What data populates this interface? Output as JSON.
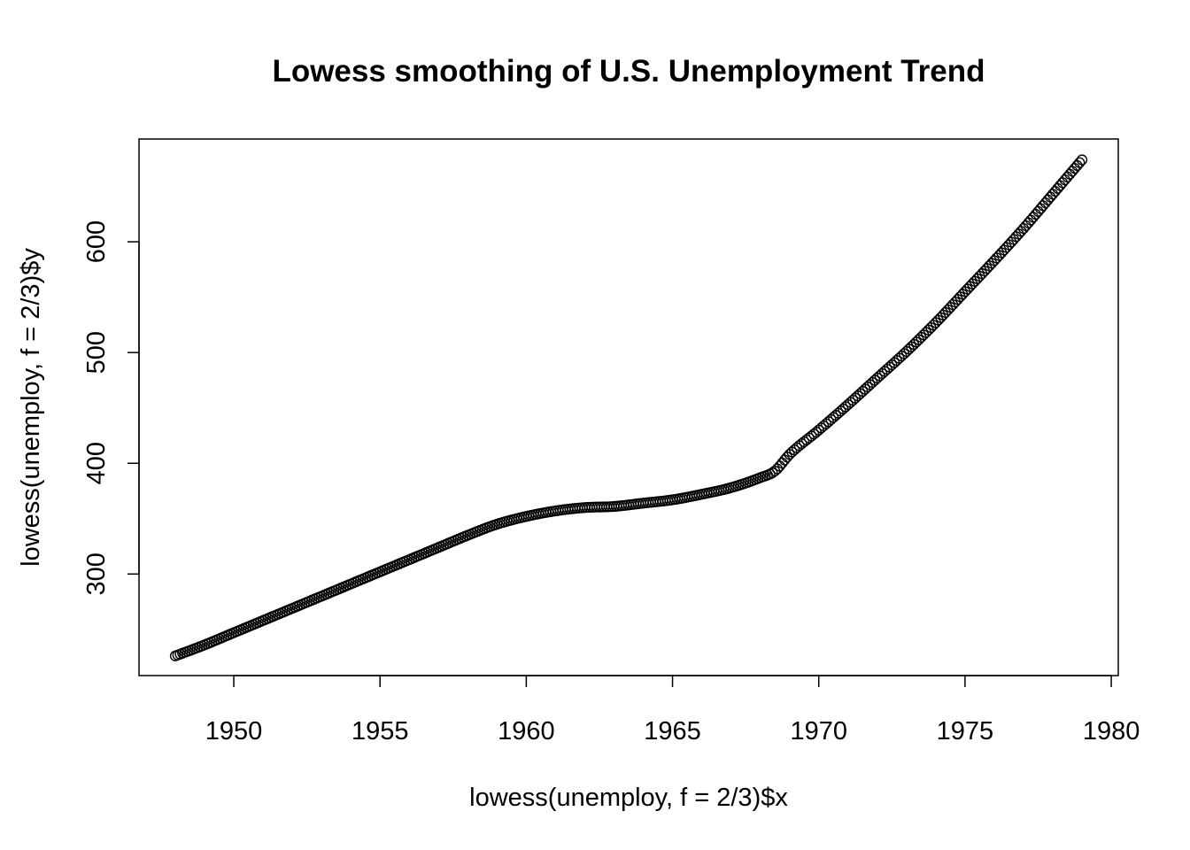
{
  "chart_data": {
    "type": "scatter",
    "title": "Lowess smoothing of U.S. Unemployment Trend",
    "xlabel": "lowess(unemploy, f = 2/3)$x",
    "ylabel": "lowess(unemploy, f = 2/3)$y",
    "xlim": [
      1946.76,
      1980.24
    ],
    "ylim": [
      208.3,
      692.8
    ],
    "x_ticks": [
      1950,
      1955,
      1960,
      1965,
      1970,
      1975,
      1980
    ],
    "y_ticks": [
      300,
      400,
      500,
      600
    ],
    "marker": "open-circle",
    "grid": false,
    "legend": "none",
    "colors": {
      "points": "#000000",
      "frame": "#000000"
    },
    "x_start": 1948.0,
    "x_step": 0.0833333,
    "x_count": 373,
    "curve_knots": [
      [
        1948.0,
        226
      ],
      [
        1949.0,
        236
      ],
      [
        1950.0,
        247
      ],
      [
        1951.0,
        258
      ],
      [
        1952.0,
        269
      ],
      [
        1953.0,
        280
      ],
      [
        1954.0,
        291
      ],
      [
        1955.0,
        302
      ],
      [
        1956.0,
        313
      ],
      [
        1957.0,
        324
      ],
      [
        1958.0,
        335
      ],
      [
        1959.0,
        345
      ],
      [
        1960.0,
        352
      ],
      [
        1961.0,
        357
      ],
      [
        1962.0,
        360
      ],
      [
        1963.0,
        361
      ],
      [
        1964.0,
        364
      ],
      [
        1965.0,
        367
      ],
      [
        1966.0,
        372
      ],
      [
        1967.0,
        378
      ],
      [
        1968.0,
        387
      ],
      [
        1968.5,
        393
      ],
      [
        1969.0,
        408
      ],
      [
        1970.0,
        430
      ],
      [
        1971.0,
        453
      ],
      [
        1972.0,
        477
      ],
      [
        1973.0,
        501
      ],
      [
        1974.0,
        527
      ],
      [
        1975.0,
        555
      ],
      [
        1976.0,
        583
      ],
      [
        1977.0,
        612
      ],
      [
        1978.0,
        643
      ],
      [
        1979.0,
        674
      ]
    ]
  }
}
